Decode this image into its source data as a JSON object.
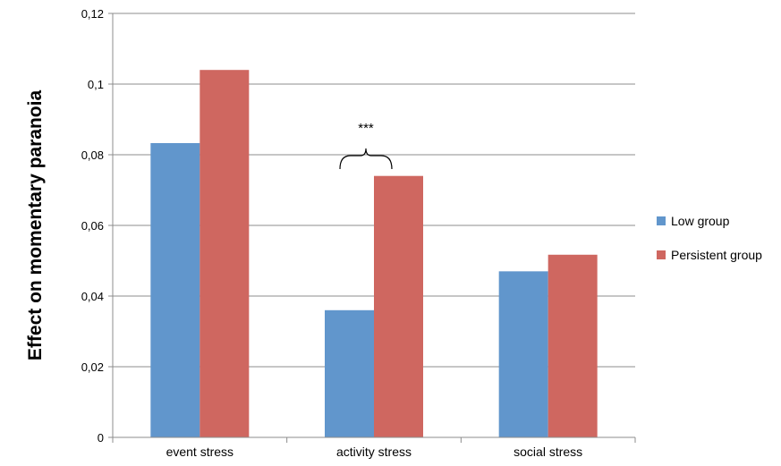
{
  "chart_data": {
    "type": "bar",
    "ylabel": "Effect on momentary paranoia",
    "xlabel": "",
    "categories": [
      "event stress",
      "activity stress",
      "social stress"
    ],
    "series": [
      {
        "name": "Low group",
        "values": [
          0.0833,
          0.036,
          0.047
        ],
        "color": "#6196CC"
      },
      {
        "name": "Persistent group",
        "values": [
          0.104,
          0.074,
          0.0517
        ],
        "color": "#CF6760"
      }
    ],
    "ylim": [
      0,
      0.12
    ],
    "yticks": [
      "0",
      "0,02",
      "0,04",
      "0,06",
      "0,08",
      "0,1",
      "0,12"
    ],
    "ytick_values": [
      0,
      0.02,
      0.04,
      0.06,
      0.08,
      0.1,
      0.12
    ],
    "grid": true,
    "legend": "right",
    "annotations": [
      {
        "text": "***",
        "category": "activity stress",
        "type": "brace"
      }
    ]
  }
}
